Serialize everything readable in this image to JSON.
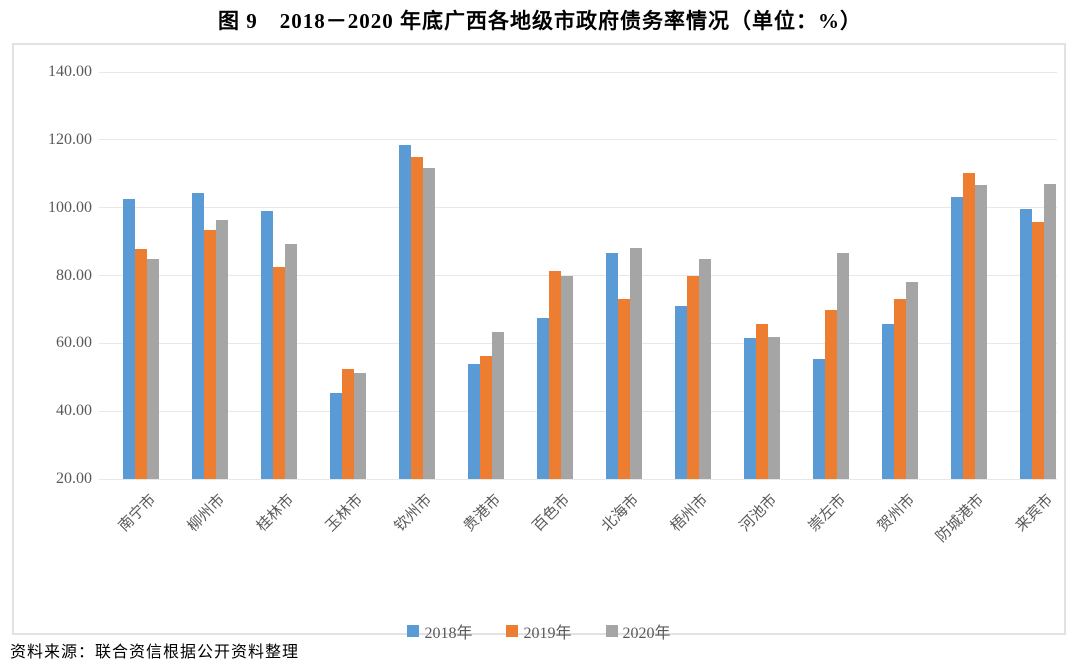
{
  "title": "图 9　2018－2020 年底广西各地级市政府债务率情况（单位：%）",
  "source": "资料来源：联合资信根据公开资料整理",
  "colors": {
    "series_2018": "#5B9BD5",
    "series_2019": "#ED7D31",
    "series_2020": "#A5A5A5",
    "gridline": "#e8e8e8",
    "axis_text": "#595959"
  },
  "chart_data": {
    "type": "bar",
    "title": "图 9　2018－2020 年底广西各地级市政府债务率情况（单位：%）",
    "xlabel": "",
    "ylabel": "",
    "unit": "%",
    "ylim": [
      20,
      140
    ],
    "ytick_step": 20,
    "ytick_labels": [
      "140.00",
      "120.00",
      "100.00",
      "80.00",
      "60.00",
      "40.00",
      "20.00"
    ],
    "grid": true,
    "legend_position": "bottom",
    "categories": [
      "南宁市",
      "柳州市",
      "桂林市",
      "玉林市",
      "钦州市",
      "贵港市",
      "百色市",
      "北海市",
      "梧州市",
      "河池市",
      "崇左市",
      "贺州市",
      "防城港市",
      "来宾市"
    ],
    "series": [
      {
        "name": "2018年",
        "color": "#5B9BD5",
        "values": [
          102.5,
          104.2,
          99.0,
          45.3,
          118.5,
          53.8,
          67.6,
          86.6,
          71.0,
          61.5,
          55.4,
          65.8,
          103.2,
          99.5
        ]
      },
      {
        "name": "2019年",
        "color": "#ED7D31",
        "values": [
          87.8,
          93.4,
          82.4,
          52.5,
          114.8,
          56.2,
          81.3,
          73.1,
          79.9,
          65.8,
          69.7,
          73.0,
          110.3,
          95.8
        ]
      },
      {
        "name": "2020年",
        "color": "#A5A5A5",
        "values": [
          85.0,
          96.4,
          89.4,
          51.3,
          111.6,
          63.2,
          80.0,
          88.0,
          85.0,
          62.0,
          86.6,
          78.2,
          106.6,
          107.1
        ]
      }
    ]
  }
}
